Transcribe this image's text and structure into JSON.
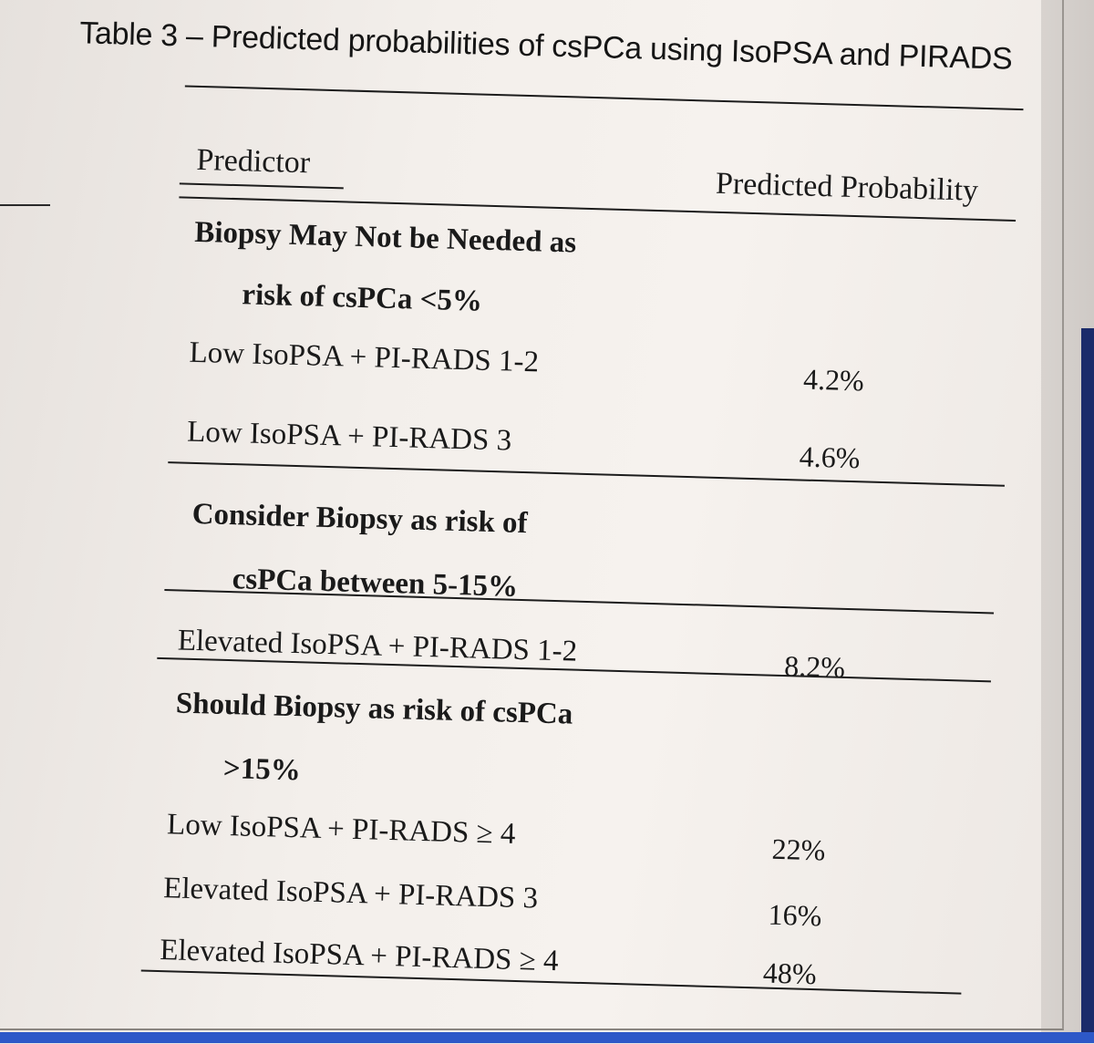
{
  "table": {
    "title": "Table 3 – Predicted probabilities of csPCa using IsoPSA and PIRADS",
    "header": {
      "predictor": "Predictor",
      "probability": "Predicted Probability"
    },
    "sections": [
      {
        "heading_line1": "Biopsy May Not be Needed as",
        "heading_line2": "risk of csPCa <5%",
        "rows": [
          {
            "predictor": "Low IsoPSA + PI-RADS 1-2",
            "probability": "4.2%"
          },
          {
            "predictor": "Low IsoPSA + PI-RADS 3",
            "probability": "4.6%"
          }
        ]
      },
      {
        "heading_line1": "Consider Biopsy as risk of",
        "heading_line2": "csPCa between 5-15%",
        "rows": [
          {
            "predictor": "Elevated IsoPSA + PI-RADS 1-2",
            "probability": "8.2%"
          }
        ]
      },
      {
        "heading_line1": "Should Biopsy as risk of csPCa",
        "heading_line2": ">15%",
        "rows": [
          {
            "predictor": "Low IsoPSA + PI-RADS ≥ 4",
            "probability": "22%"
          },
          {
            "predictor": "Elevated IsoPSA + PI-RADS 3",
            "probability": "16%"
          },
          {
            "predictor": "Elevated IsoPSA + PI-RADS ≥ 4",
            "probability": "48%"
          }
        ]
      }
    ]
  }
}
